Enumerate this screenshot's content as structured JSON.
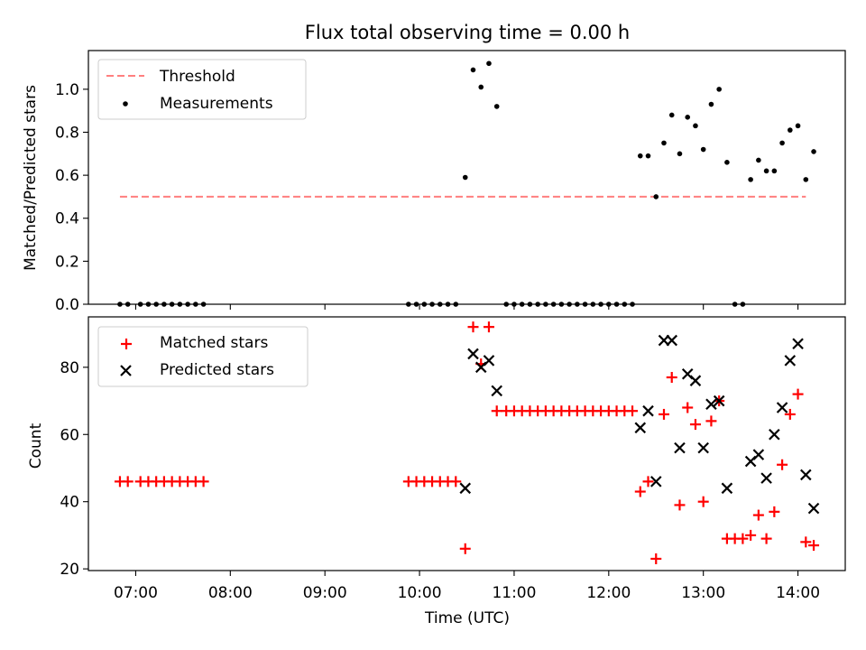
{
  "chart_data": [
    {
      "type": "scatter",
      "title": "Flux total observing time = 0.00 h",
      "xlabel": "",
      "ylabel": "Matched/Predicted stars",
      "xlim": [
        "06:30",
        "14:30"
      ],
      "ylim": [
        0,
        1.18
      ],
      "yticks": [
        0.0,
        0.2,
        0.4,
        0.6,
        0.8,
        1.0
      ],
      "ytick_labels": [
        "0.0",
        "0.2",
        "0.4",
        "0.6",
        "0.8",
        "1.0"
      ],
      "legend": {
        "placement": "upper-left",
        "entries": [
          "Threshold",
          "Measurements"
        ]
      },
      "threshold": {
        "name": "Threshold",
        "x": [
          "06:50",
          "14:05"
        ],
        "y": 0.5,
        "color": "#ff7f7f",
        "style": "dashed"
      },
      "series": [
        {
          "name": "Measurements",
          "color": "#000000",
          "points": [
            [
              "06:50",
              0.0
            ],
            [
              "06:55",
              0.0
            ],
            [
              "07:03",
              0.0
            ],
            [
              "07:08",
              0.0
            ],
            [
              "07:13",
              0.0
            ],
            [
              "07:18",
              0.0
            ],
            [
              "07:23",
              0.0
            ],
            [
              "07:28",
              0.0
            ],
            [
              "07:33",
              0.0
            ],
            [
              "07:38",
              0.0
            ],
            [
              "07:43",
              0.0
            ],
            [
              "09:53",
              0.0
            ],
            [
              "09:58",
              0.0
            ],
            [
              "10:03",
              0.0
            ],
            [
              "10:08",
              0.0
            ],
            [
              "10:13",
              0.0
            ],
            [
              "10:18",
              0.0
            ],
            [
              "10:23",
              0.0
            ],
            [
              "10:29",
              0.59
            ],
            [
              "10:34",
              1.09
            ],
            [
              "10:39",
              1.01
            ],
            [
              "10:44",
              1.12
            ],
            [
              "10:49",
              0.92
            ],
            [
              "10:55",
              0.0
            ],
            [
              "11:00",
              0.0
            ],
            [
              "11:05",
              0.0
            ],
            [
              "11:10",
              0.0
            ],
            [
              "11:15",
              0.0
            ],
            [
              "11:20",
              0.0
            ],
            [
              "11:25",
              0.0
            ],
            [
              "11:30",
              0.0
            ],
            [
              "11:35",
              0.0
            ],
            [
              "11:40",
              0.0
            ],
            [
              "11:45",
              0.0
            ],
            [
              "11:50",
              0.0
            ],
            [
              "11:55",
              0.0
            ],
            [
              "12:00",
              0.0
            ],
            [
              "12:05",
              0.0
            ],
            [
              "12:10",
              0.0
            ],
            [
              "12:15",
              0.0
            ],
            [
              "12:20",
              0.69
            ],
            [
              "12:25",
              0.69
            ],
            [
              "12:30",
              0.5
            ],
            [
              "12:35",
              0.75
            ],
            [
              "12:40",
              0.88
            ],
            [
              "12:45",
              0.7
            ],
            [
              "12:50",
              0.87
            ],
            [
              "12:55",
              0.83
            ],
            [
              "13:00",
              0.72
            ],
            [
              "13:05",
              0.93
            ],
            [
              "13:10",
              1.0
            ],
            [
              "13:15",
              0.66
            ],
            [
              "13:20",
              0.0
            ],
            [
              "13:25",
              0.0
            ],
            [
              "13:30",
              0.58
            ],
            [
              "13:35",
              0.67
            ],
            [
              "13:40",
              0.62
            ],
            [
              "13:45",
              0.62
            ],
            [
              "13:50",
              0.75
            ],
            [
              "13:55",
              0.81
            ],
            [
              "14:00",
              0.83
            ],
            [
              "14:05",
              0.58
            ],
            [
              "14:10",
              0.71
            ]
          ]
        }
      ]
    },
    {
      "type": "scatter",
      "title": "",
      "xlabel": "Time (UTC)",
      "ylabel": "Count",
      "xlim": [
        "06:30",
        "14:30"
      ],
      "ylim": [
        19.5,
        95
      ],
      "yticks": [
        20,
        40,
        60,
        80
      ],
      "ytick_labels": [
        "20",
        "40",
        "60",
        "80"
      ],
      "xticks": [
        "07:00",
        "08:00",
        "09:00",
        "10:00",
        "11:00",
        "12:00",
        "13:00",
        "14:00"
      ],
      "xtick_labels": [
        "07:00",
        "08:00",
        "09:00",
        "10:00",
        "11:00",
        "12:00",
        "13:00",
        "14:00"
      ],
      "legend": {
        "placement": "upper-left",
        "entries": [
          "Matched stars",
          "Predicted stars"
        ]
      },
      "series": [
        {
          "name": "Matched stars",
          "marker": "plus",
          "color": "#ff0000",
          "points": [
            [
              "06:50",
              46
            ],
            [
              "06:55",
              46
            ],
            [
              "07:03",
              46
            ],
            [
              "07:08",
              46
            ],
            [
              "07:13",
              46
            ],
            [
              "07:18",
              46
            ],
            [
              "07:23",
              46
            ],
            [
              "07:28",
              46
            ],
            [
              "07:33",
              46
            ],
            [
              "07:38",
              46
            ],
            [
              "07:43",
              46
            ],
            [
              "09:53",
              46
            ],
            [
              "09:58",
              46
            ],
            [
              "10:03",
              46
            ],
            [
              "10:08",
              46
            ],
            [
              "10:13",
              46
            ],
            [
              "10:18",
              46
            ],
            [
              "10:23",
              46
            ],
            [
              "10:29",
              26
            ],
            [
              "10:34",
              92
            ],
            [
              "10:39",
              81
            ],
            [
              "10:44",
              92
            ],
            [
              "10:49",
              67
            ],
            [
              "10:55",
              67
            ],
            [
              "11:00",
              67
            ],
            [
              "11:05",
              67
            ],
            [
              "11:10",
              67
            ],
            [
              "11:15",
              67
            ],
            [
              "11:20",
              67
            ],
            [
              "11:25",
              67
            ],
            [
              "11:30",
              67
            ],
            [
              "11:35",
              67
            ],
            [
              "11:40",
              67
            ],
            [
              "11:45",
              67
            ],
            [
              "11:50",
              67
            ],
            [
              "11:55",
              67
            ],
            [
              "12:00",
              67
            ],
            [
              "12:05",
              67
            ],
            [
              "12:10",
              67
            ],
            [
              "12:15",
              67
            ],
            [
              "12:20",
              43
            ],
            [
              "12:25",
              46
            ],
            [
              "12:30",
              23
            ],
            [
              "12:35",
              66
            ],
            [
              "12:40",
              77
            ],
            [
              "12:45",
              39
            ],
            [
              "12:50",
              68
            ],
            [
              "12:55",
              63
            ],
            [
              "13:00",
              40
            ],
            [
              "13:05",
              64
            ],
            [
              "13:10",
              70
            ],
            [
              "13:15",
              29
            ],
            [
              "13:20",
              29
            ],
            [
              "13:25",
              29
            ],
            [
              "13:30",
              30
            ],
            [
              "13:35",
              36
            ],
            [
              "13:40",
              29
            ],
            [
              "13:45",
              37
            ],
            [
              "13:50",
              51
            ],
            [
              "13:55",
              66
            ],
            [
              "14:00",
              72
            ],
            [
              "14:05",
              28
            ],
            [
              "14:10",
              27
            ]
          ]
        },
        {
          "name": "Predicted stars",
          "marker": "x",
          "color": "#000000",
          "points": [
            [
              "10:29",
              44
            ],
            [
              "10:34",
              84
            ],
            [
              "10:39",
              80
            ],
            [
              "10:44",
              82
            ],
            [
              "10:49",
              73
            ],
            [
              "12:20",
              62
            ],
            [
              "12:25",
              67
            ],
            [
              "12:30",
              46
            ],
            [
              "12:35",
              88
            ],
            [
              "12:40",
              88
            ],
            [
              "12:45",
              56
            ],
            [
              "12:50",
              78
            ],
            [
              "12:55",
              76
            ],
            [
              "13:00",
              56
            ],
            [
              "13:05",
              69
            ],
            [
              "13:10",
              70
            ],
            [
              "13:15",
              44
            ],
            [
              "13:30",
              52
            ],
            [
              "13:35",
              54
            ],
            [
              "13:40",
              47
            ],
            [
              "13:45",
              60
            ],
            [
              "13:50",
              68
            ],
            [
              "13:55",
              82
            ],
            [
              "14:00",
              87
            ],
            [
              "14:05",
              48
            ],
            [
              "14:10",
              38
            ]
          ]
        }
      ]
    }
  ]
}
